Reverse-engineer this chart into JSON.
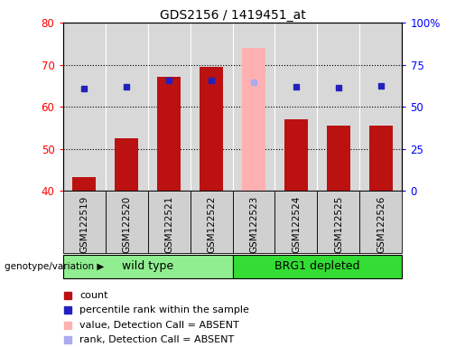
{
  "title": "GDS2156 / 1419451_at",
  "samples": [
    "GSM122519",
    "GSM122520",
    "GSM122521",
    "GSM122522",
    "GSM122523",
    "GSM122524",
    "GSM122525",
    "GSM122526"
  ],
  "count_values": [
    43.2,
    52.5,
    67.0,
    69.5,
    null,
    57.0,
    55.5,
    55.5
  ],
  "rank_values": [
    61.0,
    62.0,
    65.5,
    65.5,
    null,
    62.0,
    61.5,
    62.5
  ],
  "absent_value": [
    null,
    null,
    null,
    null,
    74.0,
    null,
    null,
    null
  ],
  "absent_rank": [
    null,
    null,
    null,
    null,
    64.5,
    null,
    null,
    null
  ],
  "ylim_left": [
    40,
    80
  ],
  "ylim_right": [
    0,
    100
  ],
  "yticks_left": [
    40,
    50,
    60,
    70,
    80
  ],
  "yticks_right": [
    0,
    25,
    50,
    75,
    100
  ],
  "ytick_right_labels": [
    "0",
    "25",
    "50",
    "75",
    "100%"
  ],
  "groups": [
    {
      "label": "wild type",
      "span": [
        0,
        4
      ],
      "color": "#90ee90"
    },
    {
      "label": "BRG1 depleted",
      "span": [
        4,
        8
      ],
      "color": "#33dd33"
    }
  ],
  "group_label": "genotype/variation",
  "bar_width": 0.55,
  "bar_color_normal": "#bb1111",
  "bar_color_absent": "#ffb0b0",
  "rank_color": "#2222bb",
  "rank_absent_color": "#aaaaee",
  "bg_plot": "#d8d8d8",
  "bg_xtick": "#d0d0d0",
  "legend_items": [
    {
      "label": "count",
      "color": "#bb1111"
    },
    {
      "label": "percentile rank within the sample",
      "color": "#2222bb"
    },
    {
      "label": "value, Detection Call = ABSENT",
      "color": "#ffb0b0"
    },
    {
      "label": "rank, Detection Call = ABSENT",
      "color": "#aaaaee"
    }
  ]
}
